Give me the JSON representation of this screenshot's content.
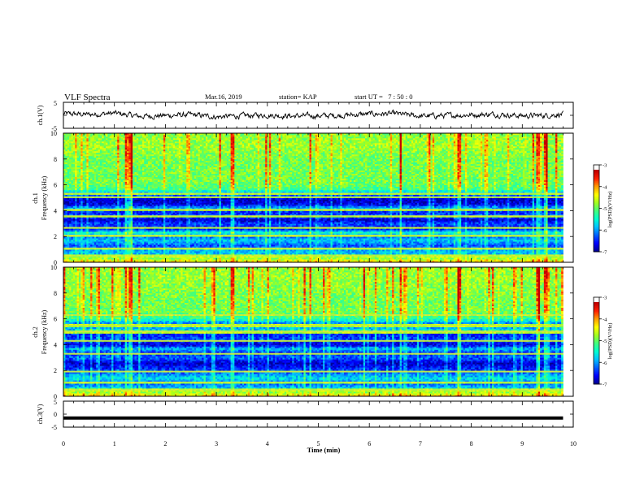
{
  "header": {
    "title": "VLF Spectra",
    "date": "Mar.16, 2019",
    "station": "station= KAP",
    "start_ut": "start UT =   7 : 50 : 0"
  },
  "colors": {
    "waveform": "#000000",
    "colormap": [
      "#000090",
      "#0000ff",
      "#0060ff",
      "#00c0ff",
      "#00ffd0",
      "#40ff80",
      "#a0ff20",
      "#ffff00",
      "#ffa000",
      "#ff2000",
      "#c00000",
      "#ffffff"
    ]
  },
  "chart_data": [
    {
      "type": "line",
      "panel": "ch1",
      "ylabel": "ch.1(V)",
      "ylim": [
        -5,
        5
      ],
      "yticks": [
        "5",
        "-5"
      ],
      "xlim": [
        0,
        10
      ],
      "series_note": "noisy waveform, roughly -1 to 1 V, with small excursions",
      "x": [
        0,
        0.5,
        1,
        1.5,
        2,
        2.5,
        3,
        3.5,
        4,
        4.5,
        5,
        5.5,
        6,
        6.5,
        7,
        7.5,
        8,
        8.5,
        9,
        9.5,
        9.8
      ],
      "y": [
        0.6,
        0.3,
        0.8,
        -0.4,
        -0.1,
        0.2,
        -0.6,
        -0.2,
        0.1,
        -0.3,
        -0.2,
        0.0,
        0.5,
        0.6,
        -0.3,
        -0.1,
        0.2,
        0.4,
        -0.2,
        0.0,
        0.5
      ]
    },
    {
      "type": "heatmap",
      "panel": "ch1-spectrogram",
      "ylabel": "Frequency (kHz)",
      "channel_label": "ch.1",
      "ylim": [
        0,
        10
      ],
      "yticks": [
        "0",
        "2",
        "4",
        "6",
        "8",
        "10"
      ],
      "xlim": [
        0,
        10
      ],
      "data_xmax": 9.8,
      "colorbar": {
        "label": "log(PSD)(V²/Hz)",
        "range": [
          -7,
          -3
        ],
        "ticks": [
          "-3",
          "-4",
          "-5",
          "-6",
          "-7"
        ]
      },
      "background_profile": [
        [
          0.0,
          0.75
        ],
        [
          0.3,
          0.6
        ],
        [
          0.6,
          0.32
        ],
        [
          1.0,
          0.28
        ],
        [
          1.3,
          0.18
        ],
        [
          1.7,
          0.32
        ],
        [
          2.0,
          0.22
        ],
        [
          2.3,
          0.42
        ],
        [
          2.6,
          0.1
        ],
        [
          3.0,
          0.18
        ],
        [
          3.3,
          0.05
        ],
        [
          3.6,
          0.2
        ],
        [
          3.9,
          0.12
        ],
        [
          4.2,
          0.3
        ],
        [
          4.5,
          0.08
        ],
        [
          4.9,
          0.04
        ],
        [
          5.3,
          0.25
        ],
        [
          5.7,
          0.5
        ],
        [
          6.2,
          0.55
        ],
        [
          7.0,
          0.55
        ],
        [
          8.0,
          0.55
        ],
        [
          9.0,
          0.6
        ],
        [
          10.0,
          0.58
        ]
      ],
      "hum_lines_khz": [
        0.5,
        1.1,
        2.1,
        2.7,
        3.6,
        4.1,
        5.05,
        5.35
      ],
      "bright_times_min": [
        1.2,
        1.3,
        3.3,
        6.6,
        7.75,
        9.3,
        9.45
      ]
    },
    {
      "type": "heatmap",
      "panel": "ch2-spectrogram",
      "ylabel": "Frequency (kHz)",
      "channel_label": "ch.2",
      "ylim": [
        0,
        10
      ],
      "yticks": [
        "0",
        "2",
        "4",
        "6",
        "8",
        "10"
      ],
      "xlim": [
        0,
        10
      ],
      "data_xmax": 9.8,
      "colorbar": {
        "label": "log(PSD)(V²/Hz)",
        "range": [
          -7,
          -3
        ],
        "ticks": [
          "-3",
          "-4",
          "-5",
          "-6",
          "-7"
        ]
      },
      "background_profile": [
        [
          0.0,
          0.75
        ],
        [
          0.3,
          0.6
        ],
        [
          0.7,
          0.3
        ],
        [
          1.0,
          0.2
        ],
        [
          1.4,
          0.35
        ],
        [
          1.8,
          0.22
        ],
        [
          2.2,
          0.12
        ],
        [
          2.6,
          0.05
        ],
        [
          3.0,
          0.2
        ],
        [
          3.4,
          0.15
        ],
        [
          3.7,
          0.3
        ],
        [
          4.0,
          0.06
        ],
        [
          4.4,
          0.18
        ],
        [
          4.8,
          0.12
        ],
        [
          5.2,
          0.32
        ],
        [
          5.6,
          0.18
        ],
        [
          6.0,
          0.45
        ],
        [
          6.5,
          0.55
        ],
        [
          7.5,
          0.55
        ],
        [
          8.5,
          0.58
        ],
        [
          10.0,
          0.6
        ]
      ],
      "hum_lines_khz": [
        0.5,
        1.1,
        1.9,
        3.3,
        4.3,
        5.0,
        5.5,
        6.3
      ],
      "bright_times_min": [
        1.2,
        1.3,
        3.3,
        6.6,
        7.75,
        9.3,
        9.45
      ]
    },
    {
      "type": "line",
      "panel": "ch3",
      "ylabel": "ch.3(V)",
      "ylim": [
        -5,
        5
      ],
      "yticks": [
        "5",
        "0",
        "-5"
      ],
      "xlim": [
        0,
        10
      ],
      "xlabel": "Time (min)",
      "xticks": [
        "0",
        "1",
        "2",
        "3",
        "4",
        "5",
        "6",
        "7",
        "8",
        "9",
        "10"
      ],
      "x": [
        0,
        9.8
      ],
      "y": [
        -1.5,
        -1.5
      ]
    }
  ]
}
